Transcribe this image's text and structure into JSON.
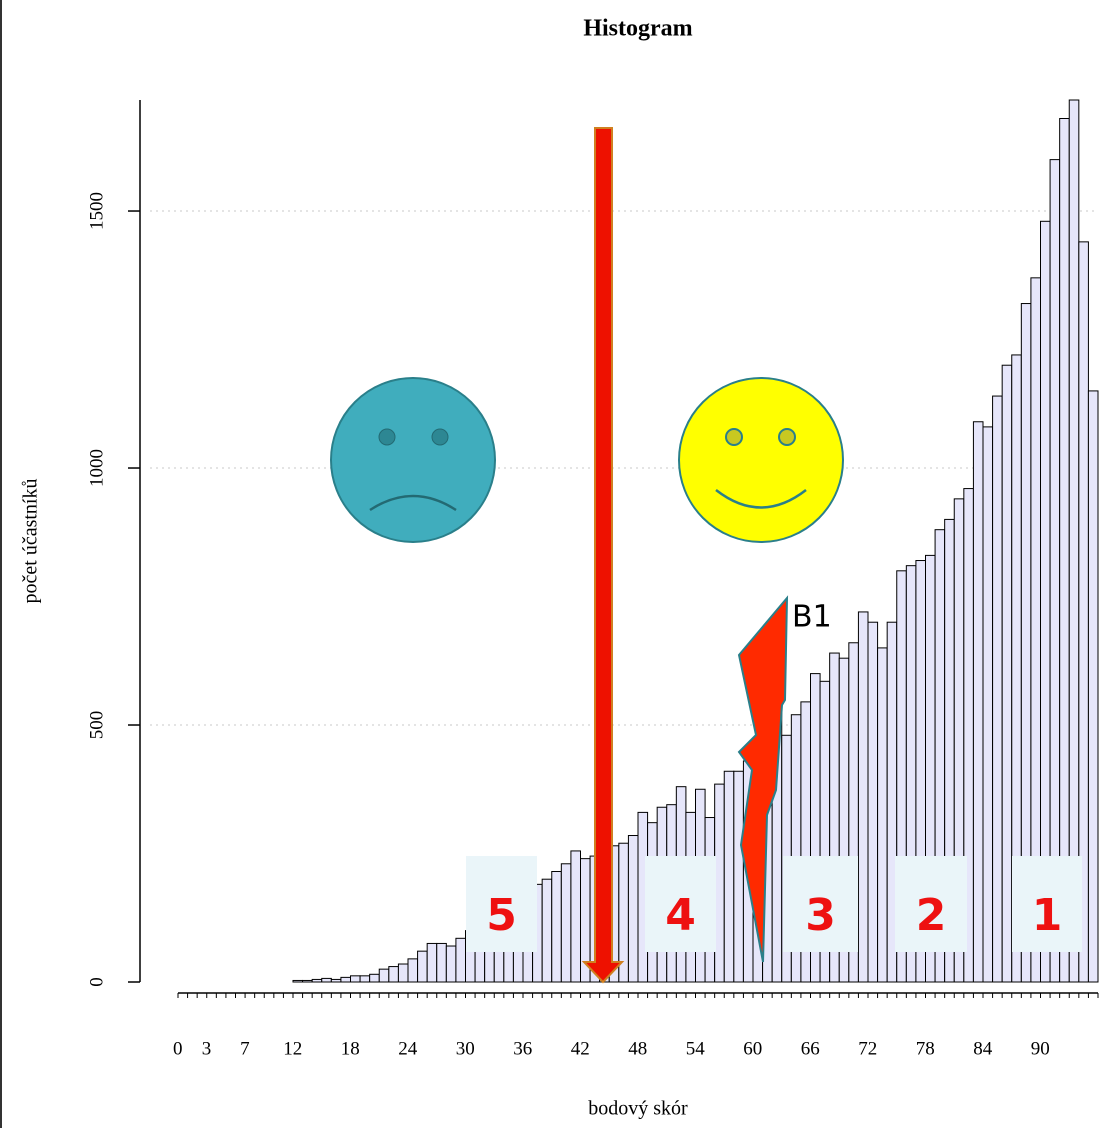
{
  "chart_data": {
    "type": "histogram",
    "title": "Histogram",
    "x_label": "bodový skór",
    "y_label": "počet účastníků",
    "bins": [
      0,
      1,
      2,
      3,
      4,
      5,
      6,
      7,
      8,
      9,
      10,
      11,
      12,
      13,
      14,
      15,
      16,
      17,
      18,
      19,
      20,
      21,
      22,
      23,
      24,
      25,
      26,
      27,
      28,
      29,
      30,
      31,
      32,
      33,
      34,
      35,
      36,
      37,
      38,
      39,
      40,
      41,
      42,
      43,
      44,
      45,
      46,
      47,
      48,
      49,
      50,
      51,
      52,
      53,
      54,
      55,
      56,
      57,
      58,
      59,
      60,
      61,
      62,
      63,
      64,
      65,
      66,
      67,
      68,
      69,
      70,
      71,
      72,
      73,
      74,
      75,
      76,
      77,
      78,
      79,
      80,
      81,
      82,
      83,
      84,
      85,
      86,
      87,
      88,
      89,
      90,
      91,
      92,
      93,
      94,
      95,
      96
    ],
    "values": [
      0,
      0,
      0,
      0,
      0,
      0,
      0,
      0,
      0,
      0,
      0,
      0,
      3,
      3,
      5,
      7,
      5,
      9,
      12,
      12,
      15,
      25,
      30,
      35,
      45,
      60,
      75,
      75,
      70,
      85,
      100,
      110,
      125,
      135,
      150,
      165,
      180,
      190,
      200,
      215,
      230,
      255,
      240,
      245,
      250,
      265,
      270,
      285,
      330,
      310,
      340,
      345,
      380,
      330,
      375,
      320,
      385,
      410,
      410,
      430,
      460,
      470,
      530,
      480,
      520,
      545,
      600,
      585,
      640,
      630,
      660,
      720,
      700,
      650,
      700,
      800,
      810,
      820,
      830,
      880,
      900,
      940,
      960,
      1090,
      1080,
      1140,
      1200,
      1220,
      1320,
      1370,
      1480,
      1600,
      1680,
      1716,
      1440,
      1150
    ],
    "color": "#e6e6fa",
    "xlim": [
      0,
      96
    ],
    "xticks": [
      0,
      3,
      7,
      12,
      18,
      24,
      30,
      36,
      42,
      48,
      54,
      60,
      66,
      72,
      78,
      84,
      90
    ],
    "ylim": [
      0,
      1716
    ],
    "yticks": [
      0,
      500,
      1000,
      1500
    ],
    "grid": true,
    "annotations": [
      "5",
      "4",
      "3",
      "2",
      "1",
      "B1"
    ]
  }
}
